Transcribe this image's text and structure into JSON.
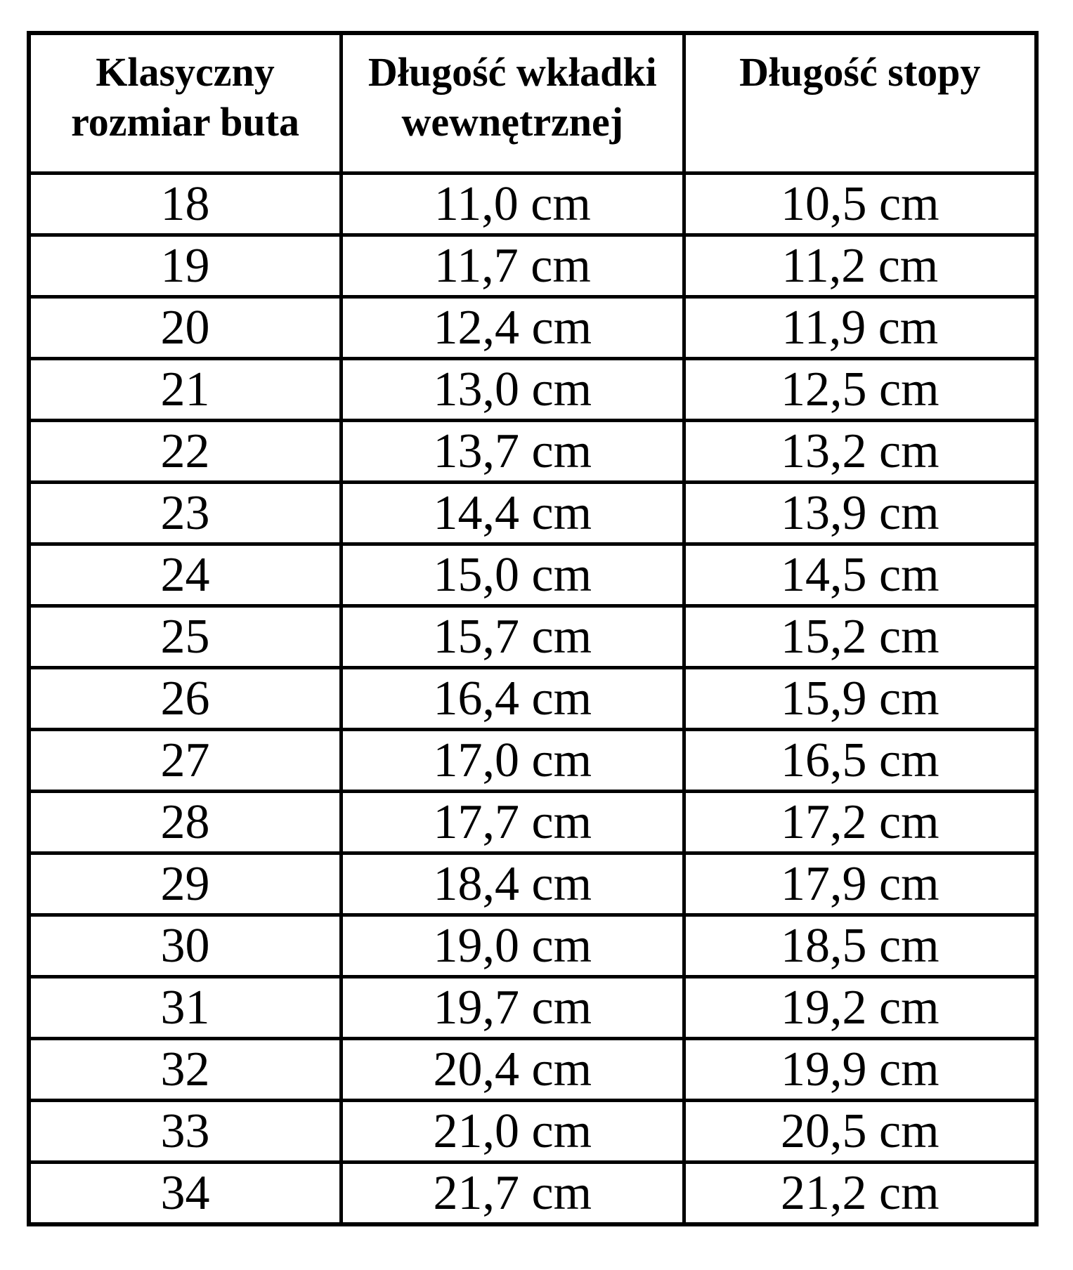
{
  "table": {
    "headers": [
      {
        "line1": "Klasyczny",
        "line2": "rozmiar buta"
      },
      {
        "line1": "Długość wkładki",
        "line2": "wewnętrznej"
      },
      {
        "line1": "Długość stopy",
        "line2": ""
      }
    ],
    "rows": [
      [
        "18",
        "11,0 cm",
        "10,5 cm"
      ],
      [
        "19",
        "11,7 cm",
        "11,2 cm"
      ],
      [
        "20",
        "12,4 cm",
        "11,9 cm"
      ],
      [
        "21",
        "13,0 cm",
        "12,5 cm"
      ],
      [
        "22",
        "13,7 cm",
        "13,2 cm"
      ],
      [
        "23",
        "14,4 cm",
        "13,9 cm"
      ],
      [
        "24",
        "15,0 cm",
        "14,5 cm"
      ],
      [
        "25",
        "15,7 cm",
        "15,2 cm"
      ],
      [
        "26",
        "16,4 cm",
        "15,9 cm"
      ],
      [
        "27",
        "17,0 cm",
        "16,5 cm"
      ],
      [
        "28",
        "17,7 cm",
        "17,2 cm"
      ],
      [
        "29",
        "18,4 cm",
        "17,9 cm"
      ],
      [
        "30",
        "19,0 cm",
        "18,5 cm"
      ],
      [
        "31",
        "19,7 cm",
        "19,2 cm"
      ],
      [
        "32",
        "20,4 cm",
        "19,9 cm"
      ],
      [
        "33",
        "21,0 cm",
        "20,5 cm"
      ],
      [
        "34",
        "21,7 cm",
        "21,2 cm"
      ]
    ]
  }
}
